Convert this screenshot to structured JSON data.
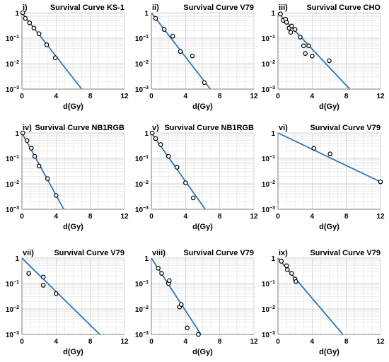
{
  "chart_data": [
    {
      "type": "scatter",
      "label": "i)",
      "title": "Survival Curve KS-1",
      "xlabel": "d(Gy)",
      "xlim": [
        0,
        12
      ],
      "ylim": [
        0.001,
        1
      ],
      "yscale": "log",
      "xticks": [
        "0",
        "4",
        "8",
        "12"
      ],
      "yticks": [
        "1",
        "10-1",
        "10-2",
        "10-3"
      ],
      "points": [
        [
          0.1,
          1.0
        ],
        [
          0.4,
          0.6
        ],
        [
          0.9,
          0.4
        ],
        [
          1.4,
          0.25
        ],
        [
          2.0,
          0.15
        ],
        [
          2.9,
          0.055
        ],
        [
          3.9,
          0.017
        ]
      ],
      "fit": [
        [
          0,
          1.0
        ],
        [
          7.0,
          0.001
        ]
      ]
    },
    {
      "type": "scatter",
      "label": "ii)",
      "title": "Survival Curve V79",
      "xlabel": "d(Gy)",
      "xlim": [
        0,
        12
      ],
      "ylim": [
        0.001,
        1
      ],
      "yscale": "log",
      "xticks": [
        "0",
        "4",
        "8",
        "12"
      ],
      "yticks": [
        "1",
        "10-1",
        "10-2",
        "10-3"
      ],
      "points": [
        [
          0.5,
          0.6
        ],
        [
          1.5,
          0.22
        ],
        [
          2.5,
          0.12
        ],
        [
          3.4,
          0.03
        ],
        [
          4.8,
          0.02
        ],
        [
          6.2,
          0.0018
        ]
      ],
      "fit": [
        [
          0,
          1.0
        ],
        [
          6.9,
          0.001
        ]
      ]
    },
    {
      "type": "scatter",
      "label": "iii)",
      "title": "Survival Curve CHO",
      "xlabel": "d(Gy)",
      "xlim": [
        0,
        12
      ],
      "ylim": [
        0.001,
        1
      ],
      "yscale": "log",
      "xticks": [
        "0",
        "4",
        "8",
        "12"
      ],
      "yticks": [
        "1",
        "10-1",
        "10-2",
        "10-3"
      ],
      "points": [
        [
          0.3,
          0.9
        ],
        [
          0.6,
          0.5
        ],
        [
          0.9,
          0.55
        ],
        [
          1.0,
          0.42
        ],
        [
          1.3,
          0.25
        ],
        [
          1.5,
          0.17
        ],
        [
          1.6,
          0.3
        ],
        [
          2.0,
          0.22
        ],
        [
          2.6,
          0.11
        ],
        [
          3.0,
          0.05
        ],
        [
          3.2,
          0.025
        ],
        [
          3.6,
          0.05
        ],
        [
          4.0,
          0.02
        ],
        [
          6.0,
          0.013
        ]
      ],
      "fit": [
        [
          0,
          1.0
        ],
        [
          8.4,
          0.001
        ]
      ]
    },
    {
      "type": "scatter",
      "label": "iv)",
      "title": "Survival Curve NB1RGB",
      "xlabel": "d(Gy)",
      "xlim": [
        0,
        12
      ],
      "ylim": [
        0.001,
        1
      ],
      "yscale": "log",
      "xticks": [
        "0",
        "4",
        "8",
        "12"
      ],
      "yticks": [
        "1",
        "10-1",
        "10-2",
        "10-3"
      ],
      "points": [
        [
          0.1,
          1.0
        ],
        [
          0.6,
          0.5
        ],
        [
          1.1,
          0.25
        ],
        [
          1.5,
          0.12
        ],
        [
          2.0,
          0.05
        ],
        [
          3.0,
          0.016
        ],
        [
          4.0,
          0.0035
        ]
      ],
      "fit": [
        [
          0,
          1.0
        ],
        [
          4.9,
          0.001
        ]
      ]
    },
    {
      "type": "scatter",
      "label": "v)",
      "title": "Survival Curve NB1RGB",
      "xlabel": "d(Gy)",
      "xlim": [
        0,
        12
      ],
      "ylim": [
        0.001,
        1
      ],
      "yscale": "log",
      "xticks": [
        "0",
        "4",
        "8",
        "12"
      ],
      "yticks": [
        "1",
        "10-1",
        "10-2",
        "10-3"
      ],
      "points": [
        [
          0.1,
          1.0
        ],
        [
          0.5,
          0.6
        ],
        [
          1.1,
          0.35
        ],
        [
          2.0,
          0.12
        ],
        [
          3.0,
          0.045
        ],
        [
          4.0,
          0.011
        ],
        [
          4.9,
          0.0028
        ]
      ],
      "fit": [
        [
          0,
          1.0
        ],
        [
          6.3,
          0.001
        ]
      ]
    },
    {
      "type": "scatter",
      "label": "vi)",
      "title": "Survival Curve V79",
      "xlabel": "d(Gy)",
      "xlim": [
        0,
        12
      ],
      "ylim": [
        0.001,
        1
      ],
      "yscale": "log",
      "xticks": [
        "0",
        "4",
        "8",
        "12"
      ],
      "yticks": [
        "1",
        "10-1",
        "10-2",
        "10-3"
      ],
      "points": [
        [
          4.2,
          0.25
        ],
        [
          6.1,
          0.15
        ],
        [
          12.0,
          0.012
        ]
      ],
      "fit": [
        [
          0,
          1.0
        ],
        [
          12.0,
          0.012
        ]
      ]
    },
    {
      "type": "scatter",
      "label": "vii)",
      "title": "Survival Curve V79",
      "xlabel": "d(Gy)",
      "xlim": [
        0,
        12
      ],
      "ylim": [
        0.001,
        1
      ],
      "yscale": "log",
      "xticks": [
        "0",
        "4",
        "8",
        "12"
      ],
      "yticks": [
        "1",
        "10-1",
        "10-2",
        "10-3"
      ],
      "points": [
        [
          0.8,
          0.25
        ],
        [
          2.5,
          0.18
        ],
        [
          2.5,
          0.085
        ],
        [
          4.0,
          0.04
        ]
      ],
      "fit": [
        [
          0,
          1.0
        ],
        [
          9.1,
          0.001
        ]
      ]
    },
    {
      "type": "scatter",
      "label": "viii)",
      "title": "Survival Curve V79",
      "xlabel": "d(Gy)",
      "xlim": [
        0,
        12
      ],
      "ylim": [
        0.001,
        1
      ],
      "yscale": "log",
      "xticks": [
        "0",
        "4",
        "8",
        "12"
      ],
      "yticks": [
        "1",
        "10-1",
        "10-2",
        "10-3"
      ],
      "points": [
        [
          0.8,
          0.4
        ],
        [
          1.2,
          0.25
        ],
        [
          2.0,
          0.1
        ],
        [
          2.1,
          0.13
        ],
        [
          3.3,
          0.012
        ],
        [
          3.5,
          0.015
        ],
        [
          4.2,
          0.0018
        ],
        [
          5.5,
          0.001
        ]
      ],
      "fit": [
        [
          0,
          1.0
        ],
        [
          5.8,
          0.001
        ]
      ]
    },
    {
      "type": "scatter",
      "label": "ix)",
      "title": "Survival Curve V79",
      "xlabel": "d(Gy)",
      "xlim": [
        0,
        12
      ],
      "ylim": [
        0.001,
        1
      ],
      "yscale": "log",
      "xticks": [
        "0",
        "4",
        "8",
        "12"
      ],
      "yticks": [
        "1",
        "10-1",
        "10-2",
        "10-3"
      ],
      "points": [
        [
          0.4,
          0.75
        ],
        [
          1.0,
          0.5
        ],
        [
          1.1,
          0.35
        ],
        [
          1.6,
          0.25
        ],
        [
          2.0,
          0.15
        ],
        [
          2.1,
          0.12
        ]
      ],
      "fit": [
        [
          0,
          1.0
        ],
        [
          7.6,
          0.001
        ]
      ]
    }
  ]
}
